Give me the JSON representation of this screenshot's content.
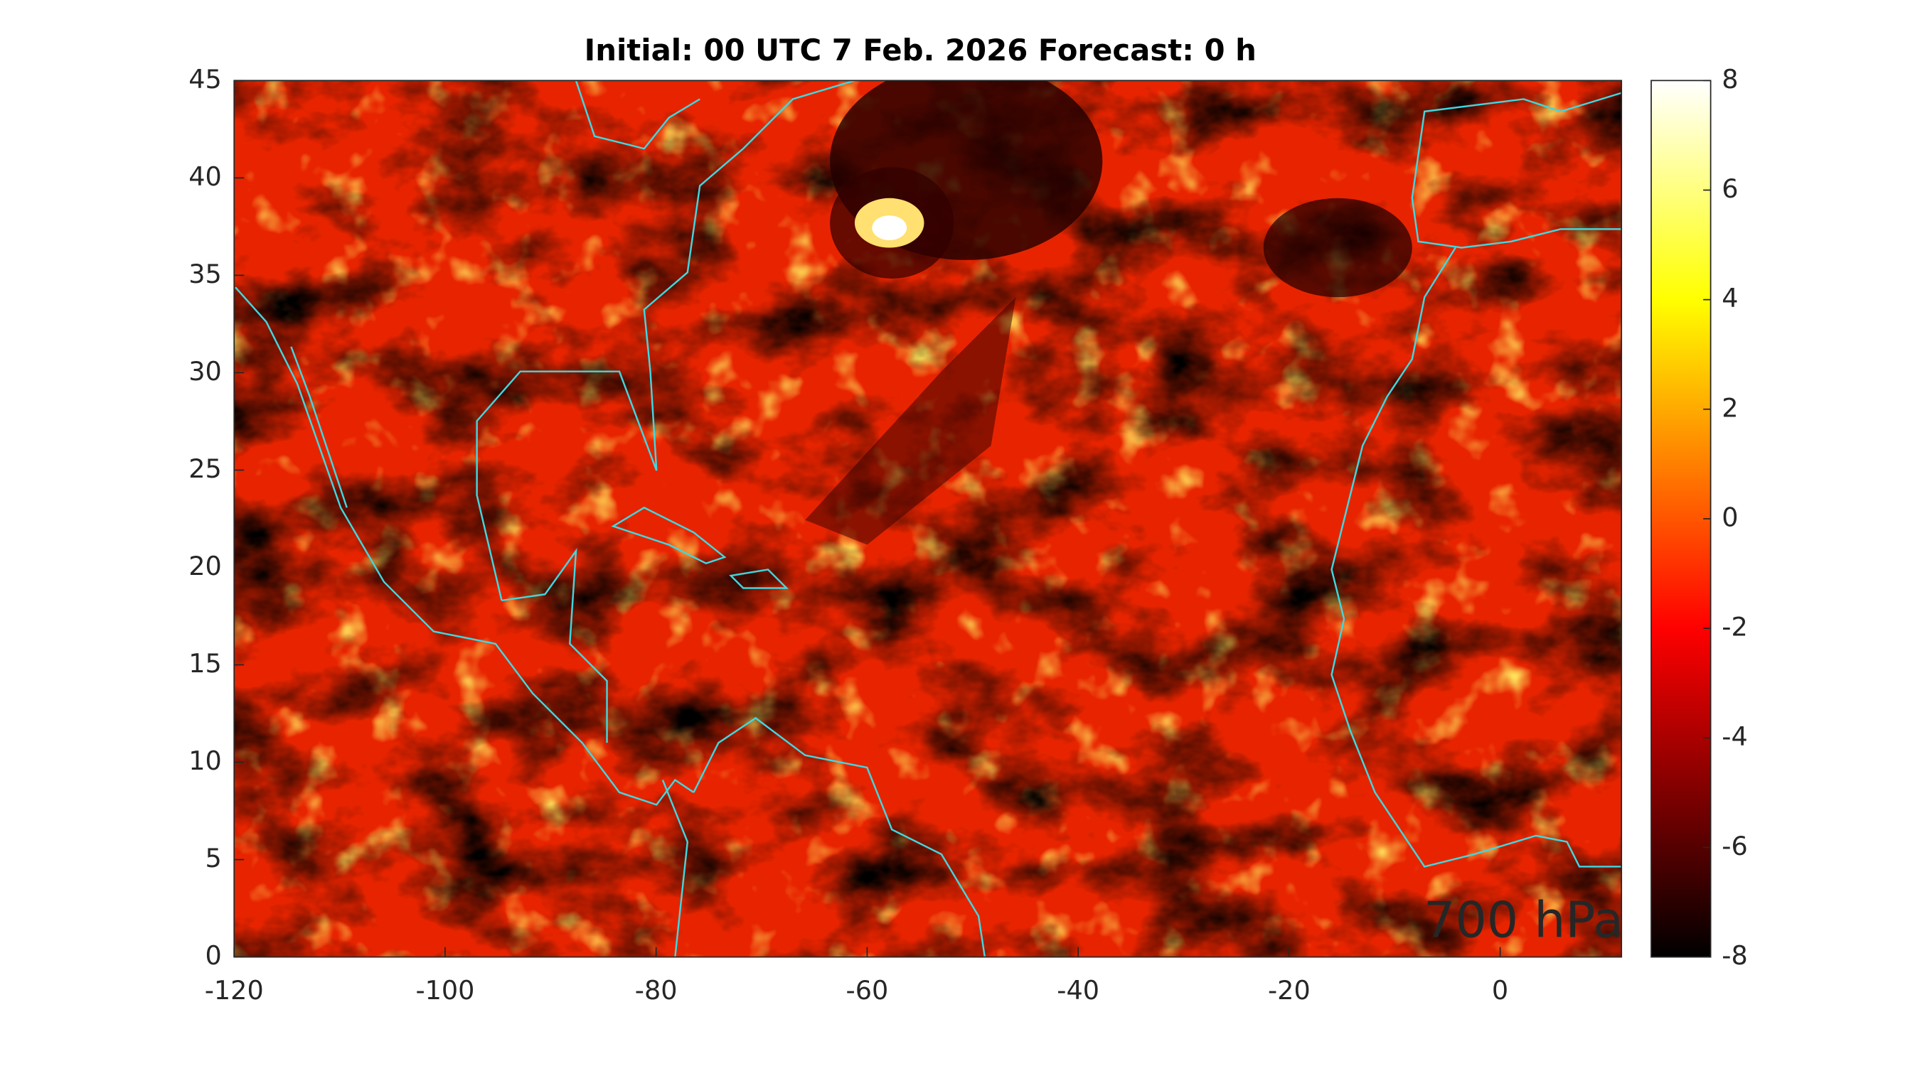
{
  "chart_data": {
    "type": "heatmap",
    "title": "Initial: 00 UTC 7 Feb. 2026 Forecast: 0 h",
    "xlim": [
      -120,
      11.5
    ],
    "ylim": [
      0,
      45
    ],
    "xticks": [
      -120,
      -100,
      -80,
      -60,
      -40,
      -20,
      0
    ],
    "yticks": [
      0,
      5,
      10,
      15,
      20,
      25,
      30,
      35,
      40,
      45
    ],
    "clim": [
      -8,
      8
    ],
    "cticks": [
      -8,
      -6,
      -4,
      -2,
      0,
      2,
      4,
      6,
      8
    ],
    "colormap": [
      "#000000",
      "#ff0000",
      "#ffff00",
      "#ffffff"
    ],
    "annotation": "700 hPa",
    "annotation_color": "#00e000"
  }
}
